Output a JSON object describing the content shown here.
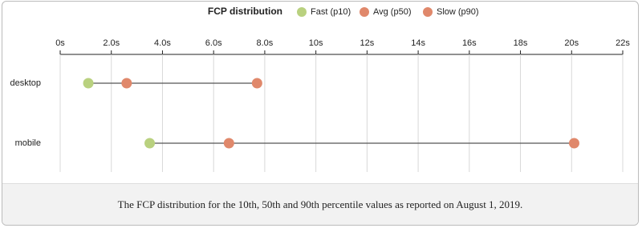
{
  "chart_data": {
    "type": "dot",
    "legend_title": "FCP distribution",
    "categories": [
      "desktop",
      "mobile"
    ],
    "series": [
      {
        "name": "Fast (p10)",
        "color": "#b9d17f",
        "values": [
          1.1,
          3.5
        ]
      },
      {
        "name": "Avg (p50)",
        "color": "#e0886b",
        "values": [
          2.6,
          6.6
        ]
      },
      {
        "name": "Slow (p90)",
        "color": "#e0886b",
        "values": [
          7.7,
          20.1
        ]
      }
    ],
    "xlim": [
      0,
      22
    ],
    "xticks": [
      "0s",
      {
        "value": 0,
        "label": "0s"
      },
      {
        "value": 2,
        "label": "2.0s"
      },
      {
        "value": 4,
        "label": "4.0s"
      },
      {
        "value": 6,
        "label": "6.0s"
      },
      {
        "value": 8,
        "label": "8.0s"
      },
      {
        "value": 10,
        "label": "10s"
      },
      {
        "value": 12,
        "label": "12s"
      },
      {
        "value": 14,
        "label": "14s"
      },
      {
        "value": 16,
        "label": "16s"
      },
      {
        "value": 18,
        "label": "18s"
      },
      {
        "value": 20,
        "label": "20s"
      },
      {
        "value": 22,
        "label": "22s"
      }
    ],
    "grid": true,
    "caption": "The FCP distribution for the 10th, 50th and 90th percentile values as reported on August 1, 2019."
  }
}
